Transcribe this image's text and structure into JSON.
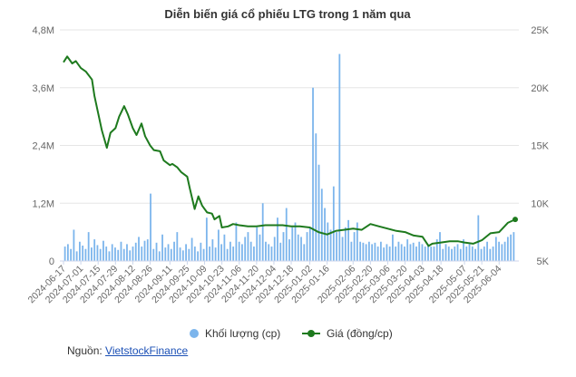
{
  "chart_data": {
    "type": "bar+line",
    "title": "Diễn biến giá cổ phiếu LTG trong 1 năm qua",
    "left_axis": {
      "ticks": [
        "0",
        "1,2M",
        "2,4M",
        "3,6M",
        "4,8M"
      ],
      "range": [
        0,
        4800000
      ]
    },
    "right_axis": {
      "ticks": [
        "5K",
        "10K",
        "15K",
        "20K",
        "25K"
      ],
      "range": [
        5000,
        25000
      ]
    },
    "x_ticks": [
      "2024-06-17",
      "2024-07-01",
      "2024-07-15",
      "2024-07-29",
      "2024-08-12",
      "2024-08-26",
      "2024-09-11",
      "2024-09-25",
      "2024-10-09",
      "2024-10-23",
      "2024-11-06",
      "2024-11-20",
      "2024-12-04",
      "2024-12-18",
      "2025-01-02",
      "2025-01-16",
      "2025-02-06",
      "2025-02-20",
      "2025-03-06",
      "2025-03-20",
      "2025-04-03",
      "2025-04-18",
      "2025-05-07",
      "2025-05-21",
      "2025-06-04"
    ],
    "series": [
      {
        "name": "Khối lượng (cp)",
        "kind": "bar",
        "color": "#7cb5ec",
        "values": [
          300000,
          350000,
          250000,
          650000,
          200000,
          400000,
          320000,
          250000,
          600000,
          280000,
          450000,
          330000,
          250000,
          420000,
          300000,
          200000,
          350000,
          280000,
          230000,
          400000,
          250000,
          350000,
          220000,
          300000,
          380000,
          500000,
          300000,
          420000,
          450000,
          1400000,
          250000,
          380000,
          200000,
          550000,
          280000,
          350000,
          250000,
          400000,
          600000,
          280000,
          220000,
          350000,
          250000,
          480000,
          300000,
          200000,
          380000,
          250000,
          900000,
          300000,
          450000,
          280000,
          650000,
          350000,
          550000,
          250000,
          400000,
          300000,
          800000,
          400000,
          350000,
          500000,
          600000,
          400000,
          300000,
          700000,
          550000,
          1200000,
          400000,
          350000,
          300000,
          500000,
          900000,
          380000,
          600000,
          1100000,
          450000,
          700000,
          800000,
          550000,
          500000,
          350000,
          600000,
          700000,
          3600000,
          2650000,
          2000000,
          1500000,
          1100000,
          800000,
          650000,
          1550000,
          600000,
          4300000,
          500000,
          700000,
          850000,
          400000,
          600000,
          800000,
          400000,
          380000,
          350000,
          400000,
          350000,
          380000,
          300000,
          400000,
          280000,
          350000,
          300000,
          550000,
          300000,
          400000,
          350000,
          300000,
          450000,
          350000,
          380000,
          300000,
          400000,
          350000,
          300000,
          350000,
          300000,
          300000,
          450000,
          600000,
          250000,
          350000,
          300000,
          250000,
          300000,
          350000,
          250000,
          450000,
          300000,
          350000,
          300000,
          250000,
          950000,
          250000,
          300000,
          400000,
          250000,
          300000,
          500000,
          400000,
          350000,
          400000,
          500000,
          550000,
          600000
        ],
        "x_start": "2024-06-17",
        "x_end": "2025-06-17"
      },
      {
        "name": "Giá (đồng/cp)",
        "kind": "line",
        "color": "#1e7a1e",
        "x": [
          "2024-06-17",
          "2024-06-20",
          "2024-06-24",
          "2024-06-27",
          "2024-07-01",
          "2024-07-05",
          "2024-07-10",
          "2024-07-12",
          "2024-07-15",
          "2024-07-18",
          "2024-07-22",
          "2024-07-25",
          "2024-07-29",
          "2024-08-01",
          "2024-08-05",
          "2024-08-08",
          "2024-08-12",
          "2024-08-15",
          "2024-08-19",
          "2024-08-22",
          "2024-08-26",
          "2024-08-29",
          "2024-09-03",
          "2024-09-06",
          "2024-09-11",
          "2024-09-13",
          "2024-09-17",
          "2024-09-20",
          "2024-09-25",
          "2024-09-27",
          "2024-10-01",
          "2024-10-04",
          "2024-10-07",
          "2024-10-09",
          "2024-10-11",
          "2024-10-15",
          "2024-10-17",
          "2024-10-21",
          "2024-10-23",
          "2024-10-28",
          "2024-11-01",
          "2024-11-06",
          "2024-11-13",
          "2024-11-20",
          "2024-11-27",
          "2024-12-04",
          "2024-12-11",
          "2024-12-18",
          "2024-12-25",
          "2025-01-02",
          "2025-01-09",
          "2025-01-16",
          "2025-01-23",
          "2025-02-06",
          "2025-02-13",
          "2025-02-20",
          "2025-02-27",
          "2025-03-06",
          "2025-03-13",
          "2025-03-20",
          "2025-03-27",
          "2025-04-03",
          "2025-04-08",
          "2025-04-11",
          "2025-04-18",
          "2025-04-25",
          "2025-05-02",
          "2025-05-07",
          "2025-05-14",
          "2025-05-21",
          "2025-05-28",
          "2025-06-04",
          "2025-06-11",
          "2025-06-17"
        ],
        "values": [
          22200,
          22700,
          22100,
          22300,
          21700,
          21400,
          20700,
          19300,
          17800,
          16300,
          14800,
          16100,
          16500,
          17500,
          18400,
          17700,
          16500,
          15900,
          16900,
          15800,
          15000,
          14600,
          14500,
          13700,
          13300,
          13400,
          13100,
          12700,
          12300,
          11300,
          9500,
          10600,
          9800,
          9500,
          9200,
          9100,
          8600,
          8900,
          7900,
          8000,
          8200,
          8100,
          8000,
          8000,
          8100,
          8100,
          8100,
          8000,
          8000,
          7900,
          7500,
          7300,
          7600,
          7800,
          7700,
          8200,
          8000,
          7800,
          7600,
          7500,
          7200,
          7100,
          6300,
          6500,
          6600,
          6700,
          6700,
          6600,
          6500,
          6800,
          7400,
          7500,
          8300,
          8600
        ]
      }
    ],
    "legend_position": "bottom-center",
    "grid": "horizontal"
  },
  "source": {
    "label": "Nguồn:",
    "link_text": "VietstockFinance"
  }
}
